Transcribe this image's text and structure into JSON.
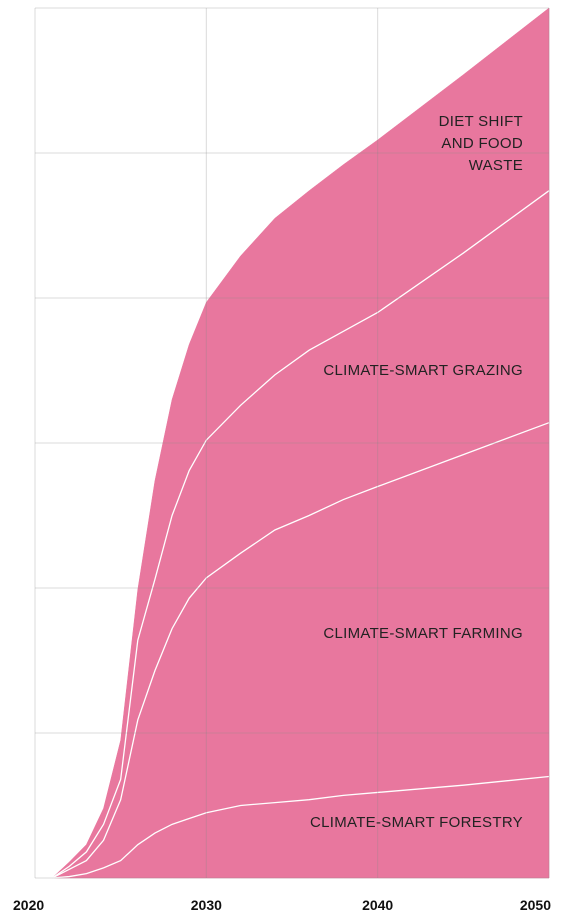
{
  "chart_data": {
    "type": "stacked_area",
    "x": [
      2021,
      2022,
      2023,
      2024,
      2025,
      2026,
      2027,
      2028,
      2029,
      2030,
      2032,
      2034,
      2036,
      2038,
      2040,
      2045,
      2050
    ],
    "series": [
      {
        "name": "CLIMATE-SMART FORESTRY",
        "color": "#e8779e",
        "values": [
          0,
          0.01,
          0.03,
          0.07,
          0.12,
          0.23,
          0.31,
          0.37,
          0.41,
          0.45,
          0.5,
          0.52,
          0.54,
          0.57,
          0.59,
          0.64,
          0.7
        ]
      },
      {
        "name": "CLIMATE-SMART FARMING",
        "color": "#e8779e",
        "values": [
          0,
          0.05,
          0.09,
          0.19,
          0.42,
          0.86,
          1.12,
          1.35,
          1.52,
          1.62,
          1.74,
          1.88,
          1.96,
          2.04,
          2.11,
          2.28,
          2.44
        ]
      },
      {
        "name": "CLIMATE-SMART GRAZING",
        "color": "#e8779e",
        "values": [
          0,
          0.02,
          0.06,
          0.11,
          0.14,
          0.55,
          0.63,
          0.78,
          0.88,
          0.95,
          1.02,
          1.07,
          1.14,
          1.16,
          1.2,
          1.39,
          1.6
        ]
      },
      {
        "name": "DIET SHIFT AND FOOD WASTE",
        "color": "#e8779e",
        "values": [
          0,
          0.03,
          0.05,
          0.11,
          0.27,
          0.35,
          0.68,
          0.8,
          0.87,
          0.95,
          1.03,
          1.08,
          1.1,
          1.15,
          1.19,
          1.23,
          1.26
        ]
      }
    ],
    "xlim": [
      2020,
      2050
    ],
    "xticks": [
      2020,
      2030,
      2040,
      2050
    ],
    "ylim": [
      0,
      6
    ],
    "yticks": [
      0,
      1,
      2,
      3,
      4,
      5,
      6
    ],
    "grid": true
  }
}
